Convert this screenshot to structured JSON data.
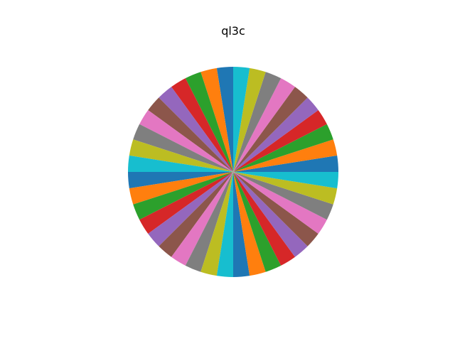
{
  "chart_data": {
    "type": "pie",
    "title": "ql3c",
    "start_angle": 90,
    "direction": "counterclockwise",
    "legend": "none",
    "values": [
      1,
      1,
      1,
      1,
      1,
      1,
      1,
      1,
      1,
      1,
      1,
      1,
      1,
      1,
      1,
      1,
      1,
      1,
      1,
      1,
      1,
      1,
      1,
      1,
      1,
      1,
      1,
      1,
      1,
      1,
      1,
      1,
      1,
      1,
      1,
      1,
      1,
      1,
      1,
      1
    ],
    "colors": [
      "#1f77b4",
      "#ff7f0e",
      "#2ca02c",
      "#d62728",
      "#9467bd",
      "#8c564b",
      "#e377c2",
      "#7f7f7f",
      "#bcbd22",
      "#17becf"
    ]
  }
}
